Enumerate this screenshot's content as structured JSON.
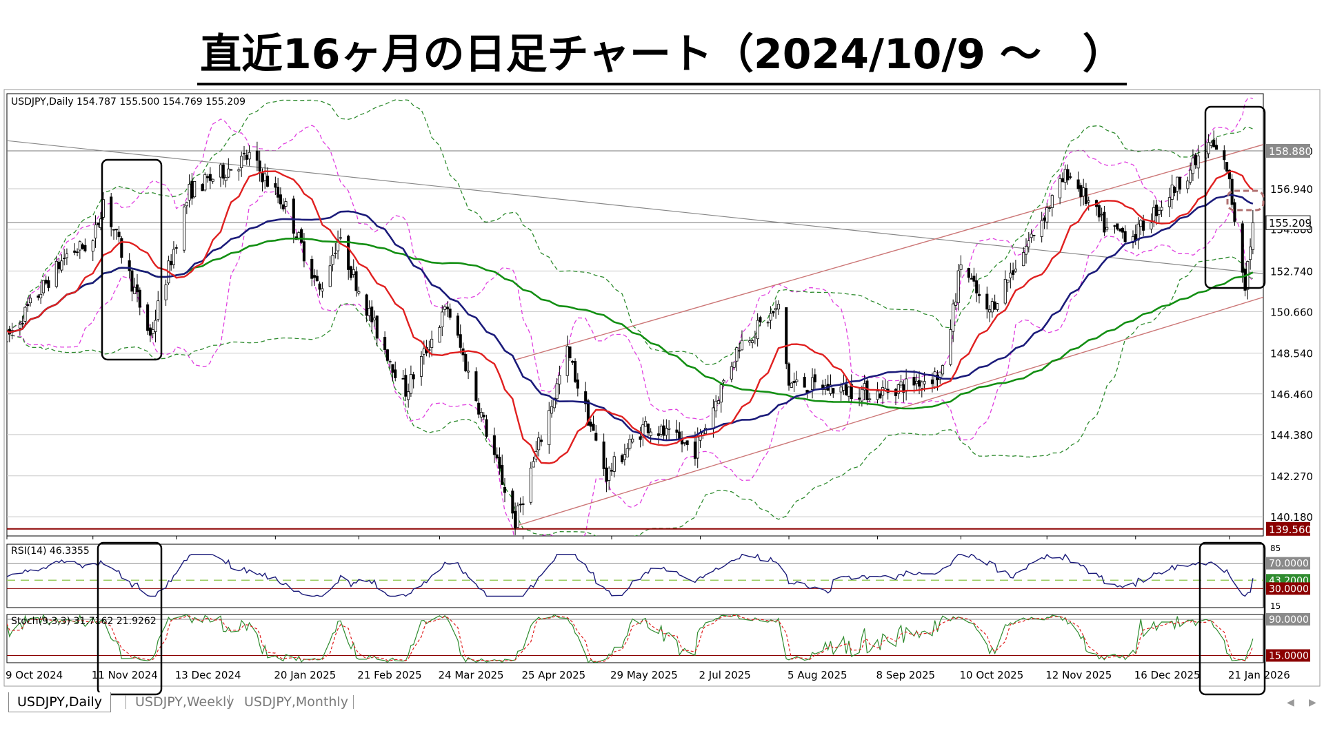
{
  "title": "直近16ヶ月の日足チャート（2024/10/9 ～　）",
  "colors": {
    "bull": "#ffffff",
    "bear": "#000000",
    "ma_short": "#e02020",
    "ma_mid": "#1b1b7a",
    "ma_long": "#138f13",
    "bb_inner": "#e040e0",
    "bb_outer": "#2e8b2e",
    "channel": "#cc7777",
    "trendline": "#888888",
    "highlight_box": "#000000",
    "dashed_box": "#b07070"
  },
  "chart_data": [
    {
      "type": "candlestick",
      "symbol_header": "USDJPY,Daily  154.787 155.500 154.769 155.209",
      "y_ticks": [
        "158.880",
        "156.940",
        "154.880",
        "152.740",
        "150.660",
        "148.540",
        "146.460",
        "144.380",
        "142.270",
        "140.180"
      ],
      "ylim": [
        139.2,
        161.8
      ],
      "x_ticks": [
        "9 Oct 2024",
        "11 Nov 2024",
        "13 Dec 2024",
        "20 Jan 2025",
        "21 Feb 2025",
        "24 Mar 2025",
        "25 Apr 2025",
        "29 May 2025",
        "2 Jul 2025",
        "5 Aug 2025",
        "8 Sep 2025",
        "10 Oct 2025",
        "12 Nov 2025",
        "16 Dec 2025",
        "21 Jan 2026"
      ],
      "price_labels": [
        {
          "text": "158.880",
          "value": 158.88,
          "style": "grey"
        },
        {
          "text": "155.209",
          "value": 155.209,
          "style": "current"
        },
        {
          "text": "139.560",
          "value": 139.56,
          "style": "red"
        }
      ],
      "key_points": [
        {
          "x": "9 Oct 2024",
          "y": 149.3
        },
        {
          "x": "1 Nov 2024",
          "y": 153.6
        },
        {
          "x": "11 Nov 2024",
          "y": 154.2
        },
        {
          "x": "15 Nov 2024",
          "y": 156.4
        },
        {
          "x": "3 Dec 2024",
          "y": 149.4
        },
        {
          "x": "18 Dec 2024",
          "y": 156.8
        },
        {
          "x": "10 Jan 2025",
          "y": 158.6
        },
        {
          "x": "24 Jan 2025",
          "y": 156.0
        },
        {
          "x": "6 Feb 2025",
          "y": 151.7
        },
        {
          "x": "13 Feb 2025",
          "y": 154.4
        },
        {
          "x": "28 Feb 2025",
          "y": 149.6
        },
        {
          "x": "11 Mar 2025",
          "y": 146.6
        },
        {
          "x": "27 Mar 2025",
          "y": 150.9
        },
        {
          "x": "22 Apr 2025",
          "y": 139.9
        },
        {
          "x": "12 May 2025",
          "y": 148.6
        },
        {
          "x": "27 May 2025",
          "y": 142.3
        },
        {
          "x": "11 Jun 2025",
          "y": 144.9
        },
        {
          "x": "30 Jun 2025",
          "y": 143.6
        },
        {
          "x": "17 Jul 2025",
          "y": 149.0
        },
        {
          "x": "1 Aug 2025",
          "y": 150.8
        },
        {
          "x": "5 Aug 2025",
          "y": 147.0
        },
        {
          "x": "8 Sep 2025",
          "y": 146.5
        },
        {
          "x": "3 Oct 2025",
          "y": 147.5
        },
        {
          "x": "10 Oct 2025",
          "y": 153.2
        },
        {
          "x": "20 Oct 2025",
          "y": 150.5
        },
        {
          "x": "4 Nov 2025",
          "y": 154.0
        },
        {
          "x": "20 Nov 2025",
          "y": 157.8
        },
        {
          "x": "5 Dec 2025",
          "y": 154.8
        },
        {
          "x": "16 Dec 2025",
          "y": 154.6
        },
        {
          "x": "31 Dec 2025",
          "y": 157.0
        },
        {
          "x": "14 Jan 2026",
          "y": 159.2
        },
        {
          "x": "20 Jan 2026",
          "y": 158.0
        },
        {
          "x": "27 Jan 2026",
          "y": 152.1
        },
        {
          "x": "30 Jan 2026",
          "y": 155.2
        }
      ],
      "overlays": [
        "moving averages (red, navy, green)",
        "Bollinger bands",
        "ascending channel",
        "descending trendline"
      ]
    },
    {
      "type": "line",
      "header": "RSI(14) 46.3355",
      "levels": [
        70,
        43.2,
        30
      ],
      "level_labels": [
        "70.0000",
        "43.2000",
        "30.0000"
      ],
      "axis_labels": [
        "85",
        "15"
      ]
    },
    {
      "type": "line",
      "header": "Stoch(9,3,3) 31.7162 21.9262",
      "levels": [
        90,
        15
      ],
      "level_labels": [
        "90.0000",
        "15.0000"
      ]
    }
  ],
  "tabs": [
    {
      "label": "USDJPY,Daily",
      "active": true
    },
    {
      "label": "USDJPY,Weekly",
      "active": false
    },
    {
      "label": "USDJPY,Monthly",
      "active": false
    }
  ]
}
